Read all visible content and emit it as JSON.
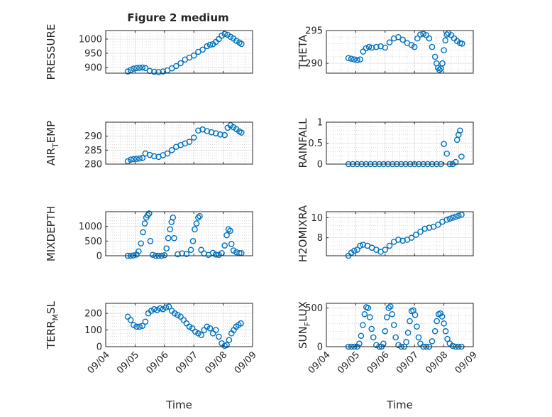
{
  "figure": {
    "title": "Figure 2 medium"
  },
  "chart_data": [
    {
      "type": "scatter",
      "ylabel": "PRESSURE",
      "ylabel_sub": null,
      "title": "Figure 2 medium",
      "xlim": [
        0,
        5
      ],
      "ylim": [
        880,
        1030
      ],
      "yticks": [
        900,
        950,
        1000
      ],
      "xticks": [
        0,
        1,
        2,
        3,
        4,
        5
      ],
      "xticklabels": [],
      "xlabel": "",
      "x": [
        0.75,
        0.85,
        0.95,
        1.05,
        1.15,
        1.25,
        1.35,
        1.5,
        1.65,
        1.8,
        1.95,
        2.1,
        2.25,
        2.4,
        2.55,
        2.7,
        2.85,
        3.0,
        3.15,
        3.3,
        3.45,
        3.55,
        3.65,
        3.75,
        3.85,
        3.95,
        4.05,
        4.15,
        4.25,
        4.35,
        4.45,
        4.55,
        4.62
      ],
      "y": [
        886,
        891,
        896,
        898,
        899,
        900,
        898,
        888,
        885,
        884,
        886,
        890,
        897,
        905,
        915,
        928,
        935,
        942,
        955,
        963,
        975,
        980,
        982,
        990,
        1000,
        1012,
        1018,
        1015,
        1008,
        1002,
        994,
        988,
        983
      ],
      "marker_color": "#0072bd"
    },
    {
      "type": "scatter",
      "ylabel": "THETA",
      "ylabel_sub": null,
      "xlim": [
        0,
        5
      ],
      "ylim": [
        288.5,
        295
      ],
      "yticks": [
        290,
        295
      ],
      "xticks": [
        0,
        1,
        2,
        3,
        4,
        5
      ],
      "xticklabels": [],
      "xlabel": "",
      "x": [
        0.75,
        0.85,
        0.95,
        1.05,
        1.15,
        1.25,
        1.35,
        1.45,
        1.55,
        1.7,
        1.85,
        2.0,
        2.15,
        2.3,
        2.45,
        2.6,
        2.75,
        2.9,
        3.0,
        3.1,
        3.2,
        3.3,
        3.4,
        3.5,
        3.6,
        3.7,
        3.75,
        3.8,
        3.85,
        3.9,
        3.95,
        4.0,
        4.05,
        4.1,
        4.15,
        4.25,
        4.35,
        4.45,
        4.55,
        4.62
      ],
      "y": [
        290.8,
        290.7,
        290.6,
        290.5,
        290.6,
        291.8,
        292.3,
        292.5,
        292.4,
        292.5,
        292.6,
        292.4,
        293.2,
        293.8,
        294.0,
        293.6,
        293.1,
        292.8,
        292.5,
        293.8,
        294.4,
        294.5,
        294.3,
        293.8,
        292.5,
        291.0,
        290.0,
        289.3,
        289.0,
        289.2,
        290.0,
        292.0,
        293.5,
        294.4,
        294.6,
        294.3,
        293.8,
        293.4,
        293.1,
        293.0
      ],
      "marker_color": "#0072bd"
    },
    {
      "type": "scatter",
      "ylabel": "AIR",
      "ylabel_sub": "T",
      "ylabel_tail": "EMP",
      "xlim": [
        0,
        5
      ],
      "ylim": [
        280,
        295
      ],
      "yticks": [
        280,
        285,
        290
      ],
      "xticks": [
        0,
        1,
        2,
        3,
        4,
        5
      ],
      "xticklabels": [],
      "xlabel": "",
      "x": [
        0.75,
        0.85,
        0.95,
        1.05,
        1.15,
        1.25,
        1.35,
        1.5,
        1.65,
        1.8,
        1.95,
        2.1,
        2.25,
        2.4,
        2.55,
        2.7,
        2.85,
        3.0,
        3.15,
        3.3,
        3.45,
        3.6,
        3.75,
        3.9,
        4.05,
        4.15,
        4.25,
        4.35,
        4.45,
        4.55,
        4.62
      ],
      "y": [
        281,
        281.6,
        281.8,
        281.9,
        282.0,
        282.2,
        283.8,
        283.3,
        282.8,
        282.6,
        283.2,
        283.8,
        285.0,
        286.2,
        286.8,
        287.4,
        288.0,
        289.5,
        292.0,
        292.4,
        291.8,
        291.4,
        291.0,
        290.6,
        290.4,
        293.0,
        293.9,
        293.2,
        292.5,
        291.7,
        291.3
      ],
      "marker_color": "#0072bd"
    },
    {
      "type": "scatter",
      "ylabel": "RAINFALL",
      "ylabel_sub": null,
      "xlim": [
        0,
        5
      ],
      "ylim": [
        0,
        1
      ],
      "yticks": [
        0,
        0.5,
        1
      ],
      "xticks": [
        0,
        1,
        2,
        3,
        4,
        5
      ],
      "xticklabels": [],
      "xlabel": "",
      "x": [
        0.75,
        0.9,
        1.05,
        1.2,
        1.35,
        1.5,
        1.65,
        1.8,
        1.95,
        2.1,
        2.25,
        2.4,
        2.55,
        2.7,
        2.85,
        3.0,
        3.15,
        3.3,
        3.45,
        3.6,
        3.75,
        3.9,
        4.0,
        4.1,
        4.2,
        4.3,
        4.4,
        4.45,
        4.5,
        4.55,
        4.6
      ],
      "y": [
        0,
        0,
        0,
        0,
        0,
        0,
        0,
        0,
        0,
        0,
        0,
        0,
        0,
        0,
        0,
        0,
        0,
        0,
        0,
        0,
        0,
        0,
        0.48,
        0.25,
        0,
        0,
        0.05,
        0.58,
        0.7,
        0.8,
        0.18
      ],
      "marker_color": "#0072bd"
    },
    {
      "type": "scatter",
      "ylabel": "MIXDEPTH",
      "ylabel_sub": null,
      "xlim": [
        0,
        5
      ],
      "ylim": [
        0,
        1500
      ],
      "yticks": [
        0,
        500,
        1000
      ],
      "xticks": [
        0,
        1,
        2,
        3,
        4,
        5
      ],
      "xticklabels": [],
      "xlabel": "",
      "x": [
        0.75,
        0.85,
        0.95,
        1.05,
        1.12,
        1.2,
        1.27,
        1.33,
        1.38,
        1.43,
        1.48,
        1.52,
        1.6,
        1.7,
        1.8,
        1.9,
        2.0,
        2.07,
        2.13,
        2.19,
        2.24,
        2.29,
        2.33,
        2.45,
        2.6,
        2.75,
        2.9,
        2.97,
        3.03,
        3.09,
        3.15,
        3.2,
        3.25,
        3.35,
        3.5,
        3.65,
        3.75,
        3.85,
        3.95,
        4.05,
        4.12,
        4.18,
        4.24,
        4.28,
        4.35,
        4.45,
        4.55,
        4.62
      ],
      "y": [
        0,
        0,
        10,
        40,
        150,
        420,
        800,
        1100,
        1300,
        1380,
        1440,
        500,
        30,
        0,
        0,
        0,
        20,
        250,
        600,
        900,
        1150,
        1300,
        600,
        50,
        80,
        60,
        200,
        500,
        900,
        1100,
        1300,
        1350,
        200,
        80,
        30,
        100,
        40,
        30,
        90,
        350,
        700,
        900,
        850,
        400,
        180,
        120,
        90,
        90
      ],
      "marker_color": "#0072bd"
    },
    {
      "type": "scatter",
      "ylabel": "H2OMIXRA",
      "ylabel_sub": null,
      "xlim": [
        0,
        5
      ],
      "ylim": [
        6.2,
        10.6
      ],
      "yticks": [
        8,
        10
      ],
      "xticks": [
        0,
        1,
        2,
        3,
        4,
        5
      ],
      "xticklabels": [],
      "xlabel": "",
      "x": [
        0.75,
        0.85,
        0.95,
        1.05,
        1.15,
        1.25,
        1.4,
        1.55,
        1.7,
        1.85,
        2.0,
        2.15,
        2.3,
        2.45,
        2.6,
        2.75,
        2.9,
        3.05,
        3.2,
        3.35,
        3.5,
        3.65,
        3.8,
        3.95,
        4.1,
        4.2,
        4.3,
        4.4,
        4.5,
        4.6
      ],
      "y": [
        6.2,
        6.5,
        6.7,
        6.8,
        7.2,
        7.3,
        7.2,
        7.0,
        6.8,
        6.6,
        6.8,
        7.2,
        7.6,
        7.8,
        7.7,
        7.8,
        8.0,
        8.3,
        8.6,
        8.9,
        9.0,
        9.1,
        9.3,
        9.6,
        9.8,
        9.9,
        10.0,
        10.1,
        10.2,
        10.3
      ],
      "marker_color": "#0072bd"
    },
    {
      "type": "scatter",
      "ylabel": "TERR",
      "ylabel_sub": "M",
      "ylabel_tail": "SL",
      "xlim": [
        0,
        5
      ],
      "ylim": [
        0,
        260
      ],
      "yticks": [
        0,
        100,
        200
      ],
      "xticks": [
        0,
        1,
        2,
        3,
        4,
        5
      ],
      "xticklabels": [
        "09/04",
        "09/05",
        "09/06",
        "09/07",
        "09/08",
        "09/09"
      ],
      "xlabel": "Time",
      "x": [
        0.75,
        0.85,
        0.95,
        1.05,
        1.15,
        1.25,
        1.35,
        1.45,
        1.55,
        1.65,
        1.75,
        1.85,
        1.95,
        2.05,
        2.15,
        2.25,
        2.35,
        2.45,
        2.55,
        2.65,
        2.75,
        2.85,
        2.95,
        3.05,
        3.15,
        3.25,
        3.35,
        3.45,
        3.55,
        3.65,
        3.75,
        3.85,
        3.95,
        4.05,
        4.12,
        4.2,
        4.28,
        4.36,
        4.44,
        4.52,
        4.6
      ],
      "y": [
        180,
        160,
        130,
        120,
        120,
        125,
        150,
        200,
        215,
        225,
        220,
        230,
        225,
        235,
        240,
        215,
        200,
        190,
        180,
        160,
        140,
        120,
        110,
        90,
        80,
        70,
        100,
        120,
        110,
        80,
        100,
        60,
        20,
        5,
        10,
        40,
        80,
        100,
        120,
        130,
        140
      ],
      "marker_color": "#0072bd"
    },
    {
      "type": "scatter",
      "ylabel": "SUN",
      "ylabel_sub": "F",
      "ylabel_tail": "LUX",
      "xlim": [
        0,
        5
      ],
      "ylim": [
        0,
        560
      ],
      "yticks": [
        0,
        500
      ],
      "xticks": [
        0,
        1,
        2,
        3,
        4,
        5
      ],
      "xticklabels": [
        "09/04",
        "09/05",
        "09/06",
        "09/07",
        "09/08",
        "09/09"
      ],
      "xlabel": "Time",
      "x": [
        0.75,
        0.85,
        0.95,
        1.05,
        1.12,
        1.18,
        1.24,
        1.3,
        1.36,
        1.42,
        1.48,
        1.54,
        1.6,
        1.7,
        1.8,
        1.88,
        1.94,
        2.0,
        2.06,
        2.12,
        2.18,
        2.24,
        2.3,
        2.36,
        2.45,
        2.55,
        2.65,
        2.72,
        2.78,
        2.84,
        2.9,
        2.96,
        3.02,
        3.08,
        3.14,
        3.2,
        3.3,
        3.4,
        3.5,
        3.6,
        3.7,
        3.76,
        3.82,
        3.88,
        3.94,
        4.0,
        4.06,
        4.12,
        4.2,
        4.3,
        4.4,
        4.5,
        4.6
      ],
      "y": [
        0,
        0,
        0,
        0,
        40,
        140,
        280,
        420,
        510,
        500,
        380,
        230,
        120,
        20,
        0,
        0,
        40,
        200,
        380,
        500,
        520,
        420,
        280,
        120,
        20,
        0,
        0,
        60,
        180,
        330,
        460,
        470,
        410,
        260,
        120,
        40,
        0,
        0,
        0,
        70,
        200,
        330,
        420,
        430,
        390,
        300,
        200,
        100,
        40,
        10,
        0,
        0,
        0
      ],
      "marker_color": "#0072bd"
    }
  ]
}
